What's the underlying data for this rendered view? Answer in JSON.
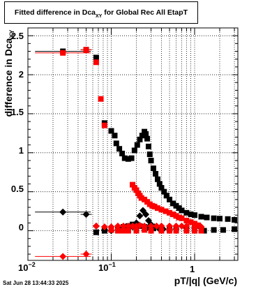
{
  "title_main": "Fitted difference in Dca",
  "title_sub": "XY",
  "title_tail": " for Global Rec All EtapT",
  "ylabel_main": "difference in Dca",
  "ylabel_sub": "XY",
  "xlabel": "pT/|q| (GeV/c)",
  "timestamp": "Sat Jun 28 13:44:33 2025",
  "ytick_labels": [
    "0",
    "0.5",
    "1",
    "1.5",
    "2",
    "2.5"
  ],
  "xtick_base": "10",
  "xtick_exp_m2": "−2",
  "xtick_exp_m1": "−1",
  "xtick_one": "1",
  "chart_data": {
    "type": "scatter",
    "xscale": "log",
    "xlim": [
      0.01,
      3.3
    ],
    "ylim": [
      -0.38,
      2.6
    ],
    "grid": true,
    "series": [
      {
        "marker": "square",
        "color": "#000000",
        "points": [
          [
            0.0263,
            2.3
          ],
          [
            0.05,
            2.32
          ],
          [
            0.066,
            2.22
          ],
          [
            0.083,
            1.38
          ],
          [
            0.1,
            1.28
          ],
          [
            0.11,
            1.22
          ],
          [
            0.115,
            1.12
          ],
          [
            0.125,
            1.05
          ],
          [
            0.135,
            0.99
          ],
          [
            0.145,
            0.93
          ],
          [
            0.16,
            0.92
          ],
          [
            0.175,
            0.93
          ],
          [
            0.19,
            1.03
          ],
          [
            0.205,
            1.1
          ],
          [
            0.22,
            1.17
          ],
          [
            0.235,
            1.22
          ],
          [
            0.25,
            1.27
          ],
          [
            0.26,
            1.24
          ],
          [
            0.27,
            1.18
          ],
          [
            0.28,
            1.08
          ],
          [
            0.29,
            0.98
          ],
          [
            0.3,
            0.9
          ],
          [
            0.32,
            0.8
          ],
          [
            0.34,
            0.73
          ],
          [
            0.36,
            0.66
          ],
          [
            0.38,
            0.6
          ],
          [
            0.4,
            0.55
          ],
          [
            0.43,
            0.5
          ],
          [
            0.46,
            0.45
          ],
          [
            0.5,
            0.4
          ],
          [
            0.55,
            0.35
          ],
          [
            0.6,
            0.32
          ],
          [
            0.65,
            0.29
          ],
          [
            0.7,
            0.26
          ],
          [
            0.8,
            0.23
          ],
          [
            0.9,
            0.21
          ],
          [
            1.0,
            0.2
          ],
          [
            1.2,
            0.18
          ],
          [
            1.4,
            0.17
          ],
          [
            1.7,
            0.16
          ],
          [
            2.0,
            0.155
          ],
          [
            2.5,
            0.15
          ],
          [
            3.0,
            0.14
          ],
          [
            0.066,
            -0.02
          ],
          [
            0.083,
            0.0
          ],
          [
            0.1,
            0.01
          ],
          [
            0.12,
            0.03
          ],
          [
            0.14,
            0.05
          ],
          [
            0.16,
            0.06
          ],
          [
            0.18,
            0.08
          ],
          [
            0.2,
            0.08
          ],
          [
            0.22,
            0.06
          ],
          [
            0.25,
            0.05
          ],
          [
            0.28,
            0.04
          ],
          [
            0.32,
            0.03
          ],
          [
            0.4,
            0.02
          ],
          [
            0.5,
            0.02
          ],
          [
            0.6,
            0.01
          ],
          [
            0.8,
            0.01
          ],
          [
            1.0,
            0.0
          ],
          [
            1.3,
            0.0
          ],
          [
            1.7,
            0.01
          ],
          [
            2.2,
            0.01
          ],
          [
            3.0,
            0.02
          ]
        ]
      },
      {
        "marker": "diamond",
        "color": "#000000",
        "points": [
          [
            0.0263,
            0.24
          ],
          [
            0.05,
            0.21
          ],
          [
            0.066,
            0.06
          ],
          [
            0.083,
            0.01
          ],
          [
            0.1,
            0.0
          ],
          [
            0.12,
            0.01
          ],
          [
            0.14,
            0.02
          ],
          [
            0.16,
            0.03
          ],
          [
            0.18,
            0.05
          ],
          [
            0.2,
            0.1
          ],
          [
            0.22,
            0.19
          ],
          [
            0.24,
            0.26
          ],
          [
            0.26,
            0.21
          ],
          [
            0.28,
            0.13
          ],
          [
            0.3,
            0.08
          ],
          [
            0.33,
            0.05
          ],
          [
            0.37,
            0.03
          ],
          [
            0.42,
            0.02
          ],
          [
            0.5,
            0.02
          ],
          [
            0.6,
            0.02
          ],
          [
            0.8,
            0.03
          ],
          [
            1.0,
            0.03
          ],
          [
            1.2,
            0.03
          ]
        ]
      },
      {
        "marker": "square",
        "color": "#ff0000",
        "points": [
          [
            0.0263,
            2.28
          ],
          [
            0.05,
            2.32
          ],
          [
            0.066,
            2.16
          ],
          [
            0.075,
            1.69
          ],
          [
            0.083,
            1.35
          ],
          [
            0.18,
            0.59
          ],
          [
            0.19,
            0.55
          ],
          [
            0.2,
            0.52
          ],
          [
            0.21,
            0.48
          ],
          [
            0.22,
            0.45
          ],
          [
            0.23,
            0.42
          ],
          [
            0.25,
            0.4
          ],
          [
            0.27,
            0.37
          ],
          [
            0.29,
            0.34
          ],
          [
            0.31,
            0.32
          ],
          [
            0.33,
            0.31
          ],
          [
            0.36,
            0.29
          ],
          [
            0.4,
            0.27
          ],
          [
            0.45,
            0.25
          ],
          [
            0.5,
            0.23
          ],
          [
            0.55,
            0.21
          ],
          [
            0.6,
            0.19
          ],
          [
            0.65,
            0.17
          ],
          [
            0.7,
            0.16
          ],
          [
            0.8,
            0.13
          ],
          [
            0.9,
            0.11
          ],
          [
            1.0,
            0.09
          ],
          [
            1.1,
            0.07
          ],
          [
            0.1,
            0.01
          ],
          [
            0.12,
            0.0
          ],
          [
            0.14,
            0.0
          ],
          [
            0.16,
            0.0
          ],
          [
            0.2,
            0.0
          ],
          [
            0.25,
            0.01
          ],
          [
            0.3,
            0.0
          ],
          [
            0.4,
            0.0
          ],
          [
            0.5,
            0.0
          ],
          [
            0.6,
            0.0
          ],
          [
            0.8,
            0.0
          ],
          [
            1.0,
            0.0
          ],
          [
            1.2,
            0.0
          ]
        ]
      },
      {
        "marker": "diamond",
        "color": "#ff0000",
        "points": [
          [
            0.0263,
            -0.33
          ],
          [
            0.05,
            -0.3
          ],
          [
            0.066,
            0.06
          ],
          [
            0.083,
            0.05
          ],
          [
            0.1,
            0.05
          ],
          [
            0.12,
            0.06
          ],
          [
            0.14,
            0.06
          ],
          [
            0.16,
            0.06
          ],
          [
            0.18,
            0.06
          ],
          [
            0.2,
            0.06
          ],
          [
            0.22,
            0.07
          ],
          [
            0.25,
            0.06
          ],
          [
            0.3,
            0.06
          ],
          [
            0.35,
            0.06
          ],
          [
            0.4,
            0.06
          ],
          [
            0.5,
            0.06
          ],
          [
            0.6,
            0.06
          ],
          [
            0.7,
            0.06
          ],
          [
            0.8,
            0.06
          ],
          [
            1.0,
            0.05
          ],
          [
            1.2,
            0.05
          ]
        ]
      }
    ]
  }
}
